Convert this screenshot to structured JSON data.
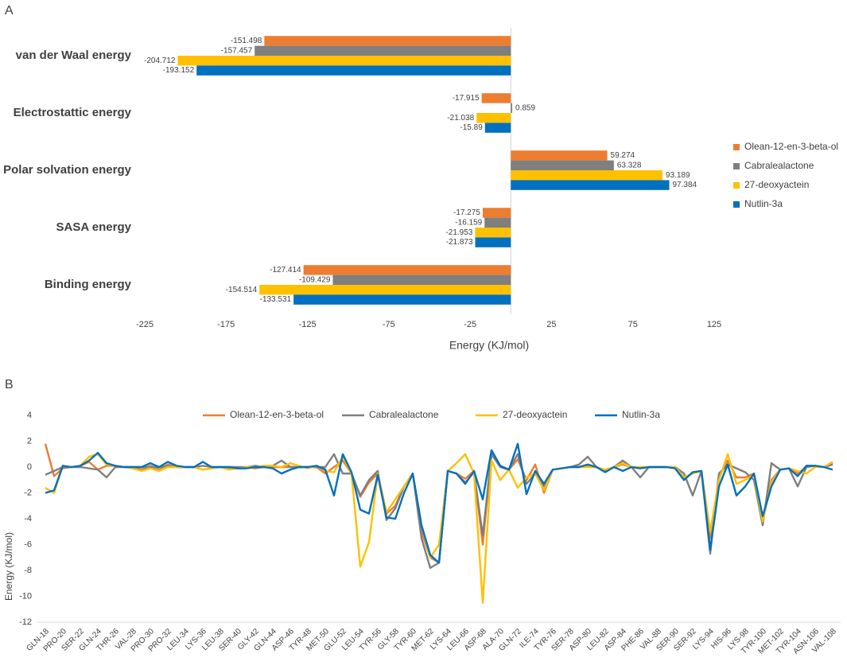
{
  "chart_data": [
    {
      "type": "bar",
      "panel_label": "A",
      "xlabel": "Energy (KJ/mol)",
      "categories": [
        "van der Waal energy",
        "Electrostattic energy",
        "Polar solvation energy",
        "SASA energy",
        "Binding energy"
      ],
      "series": [
        {
          "name": "Olean-12-en-3-beta-ol",
          "color": "#ED7D31",
          "values": [
            -151.498,
            -17.915,
            59.274,
            -17.275,
            -127.414
          ]
        },
        {
          "name": "Cabralealactone",
          "color": "#7F7F7F",
          "values": [
            -157.457,
            0.859,
            63.328,
            -16.159,
            -109.429
          ]
        },
        {
          "name": "27-deoxyactein",
          "color": "#FFC000",
          "values": [
            -204.712,
            -21.038,
            93.189,
            -21.953,
            -154.514
          ]
        },
        {
          "name": "Nutlin-3a",
          "color": "#0070C0",
          "values": [
            -193.152,
            -15.89,
            97.384,
            -21.873,
            -133.531
          ]
        }
      ],
      "xlim": [
        -225,
        125
      ],
      "xticks": [
        -225,
        -175,
        -125,
        -75,
        -25,
        25,
        75,
        125
      ],
      "legend": "right"
    },
    {
      "type": "line",
      "panel_label": "B",
      "ylabel": "Energy (KJ/mol)",
      "categories": [
        "GLN-18",
        null,
        "PRO-20",
        null,
        "SER-22",
        null,
        "GLN-24",
        null,
        "THR-26",
        null,
        "VAL-28",
        null,
        "PRO-30",
        null,
        "PRO-32",
        null,
        "LEU-34",
        null,
        "LYS-36",
        null,
        "LEU-38",
        null,
        "SER-40",
        null,
        "GLY-42",
        null,
        "GLN-44",
        null,
        "ASP-46",
        null,
        "TYR-48",
        null,
        "MET-50",
        null,
        "GLU-52",
        null,
        "LEU-54",
        null,
        "TYR-56",
        null,
        "GLY-58",
        null,
        "TYR-60",
        null,
        "MET-62",
        null,
        "LYS-64",
        null,
        "LEU-66",
        null,
        "ASP-68",
        null,
        "ALA-70",
        null,
        "GLN-72",
        null,
        "ILE-74",
        null,
        "TYR-76",
        null,
        "SER-78",
        null,
        "ASP-80",
        null,
        "LEU-82",
        null,
        "ASP-84",
        null,
        "PHE-86",
        null,
        "VAL-88",
        null,
        "SER-90",
        null,
        "SER-92",
        null,
        "LYS-94",
        null,
        "HIS-96",
        null,
        "LYS-98",
        null,
        "TYR-100",
        null,
        "MET-102",
        null,
        "TYR-104",
        null,
        "ASN-106",
        null,
        "VAL-108"
      ],
      "series": [
        {
          "name": "Olean-12-en-3-beta-ol",
          "color": "#ED7D31",
          "values": [
            1.8,
            -0.7,
            -0.1,
            0,
            0.1,
            0.4,
            -0.2,
            0.1,
            0.1,
            0,
            0,
            -0.2,
            0.1,
            -0.2,
            0.2,
            0,
            0,
            0,
            -0.2,
            -0.1,
            0,
            -0.1,
            -0.1,
            0,
            -0.1,
            0,
            0,
            0,
            0,
            0,
            0,
            0,
            -0.5,
            0,
            0.5,
            -0.5,
            -2.3,
            -1.2,
            -0.5,
            -3.6,
            -3.0,
            -1.5,
            -0.5,
            -5.0,
            -7.0,
            -7.4,
            -0.3,
            -0.5,
            -0.9,
            -0.3,
            -6.0,
            1.0,
            0,
            -0.2,
            0.6,
            -1.0,
            0.2,
            -2.0,
            -0.2,
            -0.1,
            0,
            0,
            0.1,
            0,
            -0.3,
            0,
            0.2,
            0,
            -0.1,
            0,
            0,
            0,
            -0.1,
            -1.0,
            -0.4,
            -0.3,
            -5.5,
            -0.8,
            0.5,
            -0.8,
            -0.8,
            -0.5,
            -4.0,
            -1.0,
            -0.2,
            -0.1,
            -0.5,
            0,
            0.1,
            0,
            0.3
          ]
        },
        {
          "name": "Cabralealactone",
          "color": "#7F7F7F",
          "values": [
            -0.6,
            -0.3,
            0,
            0,
            0,
            -0.1,
            -0.2,
            -0.8,
            0,
            0,
            0,
            0,
            0,
            0,
            0.1,
            0,
            0,
            0,
            0.1,
            0,
            0,
            0,
            0,
            0,
            0.1,
            0,
            0.1,
            0.5,
            0,
            0,
            0,
            0,
            0,
            1.0,
            -0.5,
            -0.5,
            -2.2,
            -1.0,
            -0.3,
            -4.1,
            -3.2,
            -1.5,
            -0.5,
            -5.5,
            -7.8,
            -7.4,
            -0.3,
            -0.5,
            -1.2,
            -0.4,
            -5.3,
            1.0,
            0,
            -0.2,
            1.0,
            -1.3,
            -0.5,
            -1.5,
            -0.2,
            -0.1,
            0,
            0.2,
            0.8,
            0,
            -0.3,
            0,
            0.5,
            0,
            -0.8,
            0,
            0,
            0,
            0,
            -0.5,
            -2.2,
            -0.3,
            -6.7,
            -0.5,
            0.2,
            -0.1,
            -0.4,
            -1.0,
            -4.5,
            0.3,
            -0.2,
            -0.1,
            -1.5,
            0,
            0.1,
            0,
            0.2
          ]
        },
        {
          "name": "27-deoxyactein",
          "color": "#FFC000",
          "values": [
            -1.6,
            -2.0,
            0.1,
            0,
            0.1,
            0.8,
            1.0,
            0.2,
            0.1,
            0,
            -0.1,
            -0.3,
            -0.1,
            -0.3,
            0,
            0,
            0,
            0,
            -0.2,
            -0.1,
            0,
            -0.2,
            -0.1,
            0,
            0,
            0.1,
            0.1,
            0,
            0.3,
            0.1,
            -0.1,
            0.1,
            -0.3,
            -0.4,
            0.8,
            -0.5,
            -7.7,
            -5.8,
            -0.5,
            -3.5,
            -2.5,
            -1.5,
            -0.5,
            -4.5,
            -7.0,
            -6.0,
            -0.3,
            0.3,
            1.0,
            -0.5,
            -10.5,
            0.5,
            -1.0,
            -0.2,
            -1.6,
            -0.8,
            -0.5,
            -1.8,
            -0.2,
            -0.1,
            0,
            0,
            0,
            0,
            -0.2,
            0,
            0.3,
            0,
            0,
            0,
            0,
            0,
            0,
            -0.8,
            -0.5,
            -0.3,
            -5.0,
            -1.0,
            1.0,
            -1.3,
            -1.0,
            -0.6,
            -4.2,
            -1.2,
            -0.2,
            -0.1,
            -0.3,
            -0.5,
            0,
            0,
            0.4
          ]
        },
        {
          "name": "Nutlin-3a",
          "color": "#0070C0",
          "values": [
            -2.0,
            -1.8,
            0.1,
            0,
            0.1,
            0.5,
            1.1,
            0.3,
            0.1,
            0,
            0,
            0,
            0.3,
            0,
            0.4,
            0.1,
            0,
            0,
            0.4,
            0,
            0,
            0,
            -0.1,
            -0.1,
            0,
            0,
            -0.1,
            -0.5,
            -0.2,
            0,
            0,
            0.1,
            -0.2,
            -2.2,
            1.0,
            -0.4,
            -3.3,
            -3.6,
            -0.6,
            -3.9,
            -4.0,
            -2.0,
            -0.5,
            -4.5,
            -6.8,
            -7.4,
            -0.3,
            -0.5,
            -1.3,
            -0.3,
            -2.5,
            1.3,
            0.1,
            -0.2,
            1.8,
            -2.1,
            -0.3,
            -1.3,
            -0.2,
            -0.1,
            0,
            0,
            0.2,
            0,
            -0.4,
            0,
            -0.3,
            0,
            -0.1,
            0,
            0,
            0,
            -0.1,
            -1.0,
            -0.4,
            -0.3,
            -6.4,
            -1.5,
            0.2,
            -2.2,
            -1.5,
            -0.5,
            -3.8,
            -1.5,
            -0.2,
            -0.1,
            -0.7,
            0.1,
            0.1,
            0,
            -0.2
          ]
        }
      ],
      "ylim": [
        -12,
        4
      ],
      "yticks": [
        4,
        2,
        0,
        -2,
        -4,
        -6,
        -8,
        -10,
        -12
      ],
      "legend": "top"
    }
  ]
}
